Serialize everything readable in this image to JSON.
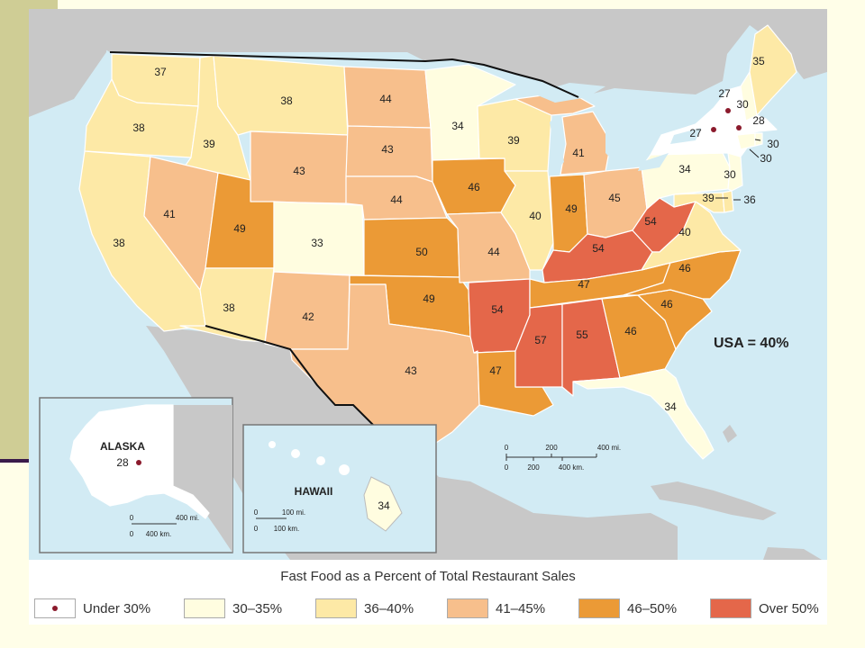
{
  "map": {
    "usa_note": "USA = 40%",
    "inset_labels": {
      "alaska": "ALASKA",
      "hawaii": "HAWAII"
    },
    "scale": {
      "main": {
        "miles": [
          "0",
          "200",
          "400 mi."
        ],
        "km": [
          "0",
          "200",
          "400 km."
        ]
      },
      "alaska": {
        "miles": [
          "0",
          "400 mi."
        ],
        "km": [
          "0",
          "400 km."
        ]
      },
      "hawaii": {
        "miles": [
          "0",
          "100 mi."
        ],
        "km": [
          "0",
          "100 km."
        ]
      }
    },
    "states": {
      "WA": "37",
      "OR": "38",
      "CA": "38",
      "ID": "39",
      "NV": "41",
      "MT": "38",
      "WY": "43",
      "UT": "49",
      "AZ": "38",
      "CO": "33",
      "NM": "42",
      "ND": "44",
      "SD": "43",
      "NE": "44",
      "KS": "50",
      "OK": "49",
      "TX": "43",
      "MN": "34",
      "IA": "46",
      "MO": "44",
      "AR": "54",
      "LA": "47",
      "WI": "39",
      "IL": "40",
      "MI": "41",
      "IN": "49",
      "OH": "45",
      "KY": "54",
      "TN": "47",
      "MS": "57",
      "AL": "55",
      "GA": "46",
      "FL": "34",
      "SC": "46",
      "NC": "46",
      "VA": "40",
      "WV": "54",
      "PA": "34",
      "NY": "27",
      "ME": "35",
      "VT": "27",
      "NH": "30",
      "MA": "28",
      "RI": "30",
      "CT": "30",
      "NJ": "30",
      "DE": "39",
      "MD": "36",
      "AK": "28",
      "HI": "34"
    },
    "colors": {
      "under30": "#ffffff",
      "c30_35": "#fffde0",
      "c36_40": "#fde9a6",
      "c41_45": "#f7bf8c",
      "c46_50": "#eb9a36",
      "over50": "#e4674a",
      "dot": "#8b1a2c",
      "water": "#d2ebf4",
      "land": "#c8c8c8"
    }
  },
  "legend": {
    "title": "Fast Food as a Percent of Total Restaurant Sales",
    "items": [
      {
        "label": "Under 30%",
        "color": "#ffffff",
        "dot": true
      },
      {
        "label": "30–35%",
        "color": "#fffde0"
      },
      {
        "label": "36–40%",
        "color": "#fde9a6"
      },
      {
        "label": "41–45%",
        "color": "#f7bf8c"
      },
      {
        "label": "46–50%",
        "color": "#eb9a36"
      },
      {
        "label": "Over 50%",
        "color": "#e4674a"
      }
    ]
  }
}
